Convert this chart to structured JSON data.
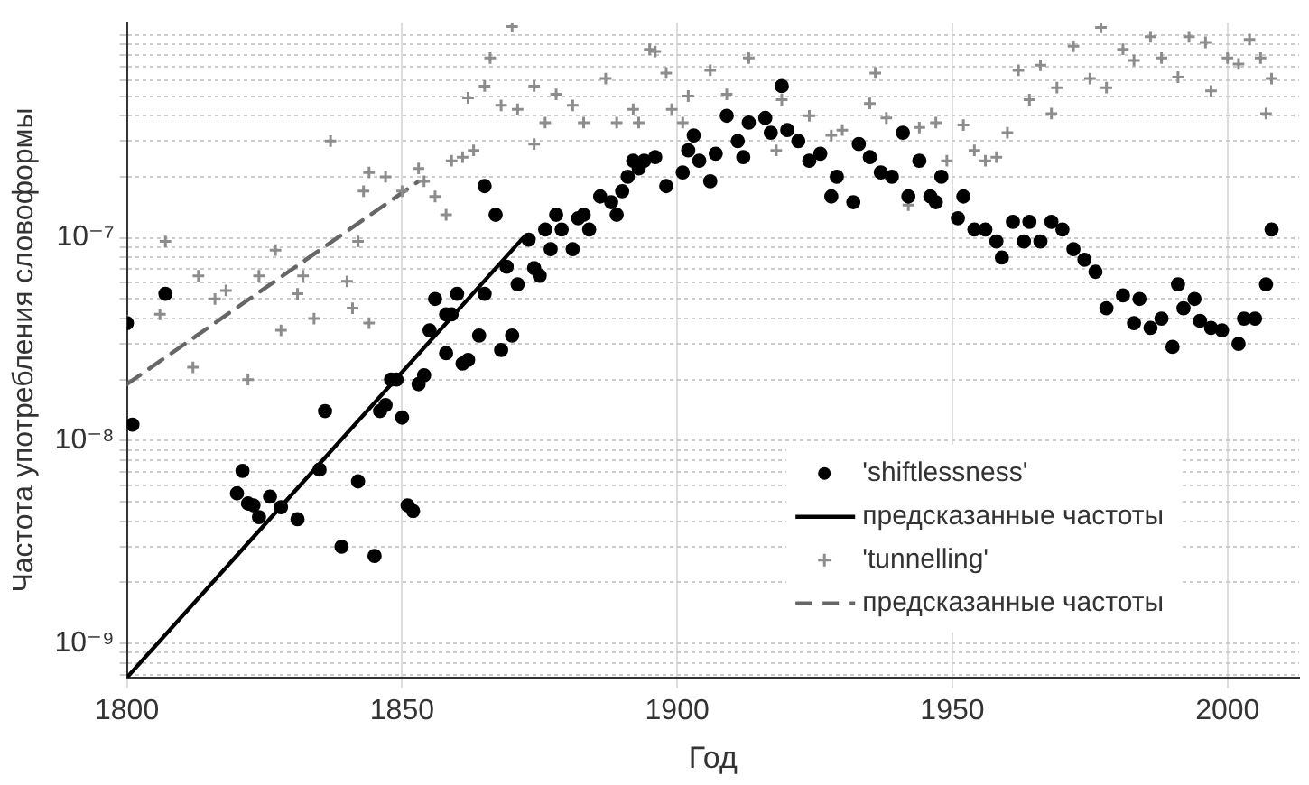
{
  "chart_data": {
    "type": "scatter",
    "xlabel": "Год",
    "ylabel": "Частота употребления словоформы",
    "log": "y",
    "grid": true,
    "legend": "bottom right",
    "xlim": [
      1800,
      2013
    ],
    "xticks": [
      1800,
      1850,
      1900,
      1950,
      2000
    ],
    "ylim": [
      6.8e-10,
      1.15e-06
    ],
    "yticks": [
      {
        "value": 7e-10,
        "label": null
      },
      {
        "value": 8e-10,
        "label": null
      },
      {
        "value": 9e-10,
        "label": null
      },
      {
        "value": 1e-09,
        "label": "10⁻⁹"
      },
      {
        "value": 2e-09,
        "label": null
      },
      {
        "value": 3e-09,
        "label": null
      },
      {
        "value": 4e-09,
        "label": null
      },
      {
        "value": 5e-09,
        "label": null
      },
      {
        "value": 6e-09,
        "label": null
      },
      {
        "value": 7e-09,
        "label": null
      },
      {
        "value": 8e-09,
        "label": null
      },
      {
        "value": 9e-09,
        "label": null
      },
      {
        "value": 1e-08,
        "label": "10⁻⁸"
      },
      {
        "value": 2e-08,
        "label": null
      },
      {
        "value": 3e-08,
        "label": null
      },
      {
        "value": 4e-08,
        "label": null
      },
      {
        "value": 5e-08,
        "label": null
      },
      {
        "value": 6e-08,
        "label": null
      },
      {
        "value": 7e-08,
        "label": null
      },
      {
        "value": 8e-08,
        "label": null
      },
      {
        "value": 9e-08,
        "label": null
      },
      {
        "value": 1e-07,
        "label": "10⁻⁷"
      },
      {
        "value": 2e-07,
        "label": null
      },
      {
        "value": 3e-07,
        "label": null
      },
      {
        "value": 4e-07,
        "label": null
      },
      {
        "value": 5e-07,
        "label": null
      },
      {
        "value": 6e-07,
        "label": null
      },
      {
        "value": 7e-07,
        "label": null
      },
      {
        "value": 8e-07,
        "label": null
      },
      {
        "value": 9e-07,
        "label": null
      },
      {
        "value": 1e-06,
        "label": null
      }
    ],
    "series": [
      {
        "name": "'shiftlessness'",
        "marker": "circle",
        "color": "#000000",
        "x": [
          1800,
          1801,
          1807,
          1820,
          1821,
          1822,
          1823,
          1824,
          1826,
          1828,
          1831,
          1835,
          1836,
          1839,
          1842,
          1845,
          1846,
          1847,
          1848,
          1849,
          1850,
          1851,
          1852,
          1853,
          1854,
          1855,
          1856,
          1858,
          1858,
          1859,
          1860,
          1861,
          1862,
          1864,
          1865,
          1865,
          1867,
          1868,
          1869,
          1870,
          1871,
          1873,
          1874,
          1875,
          1876,
          1877,
          1878,
          1879,
          1881,
          1882,
          1883,
          1884,
          1886,
          1888,
          1889,
          1890,
          1891,
          1892,
          1893,
          1894,
          1896,
          1898,
          1901,
          1902,
          1903,
          1904,
          1906,
          1907,
          1909,
          1911,
          1912,
          1913,
          1916,
          1917,
          1919,
          1920,
          1922,
          1924,
          1926,
          1928,
          1929,
          1932,
          1933,
          1935,
          1937,
          1939,
          1941,
          1942,
          1944,
          1946,
          1947,
          1948,
          1951,
          1952,
          1954,
          1956,
          1958,
          1959,
          1961,
          1963,
          1964,
          1966,
          1968,
          1970,
          1972,
          1974,
          1976,
          1978,
          1981,
          1983,
          1984,
          1986,
          1988,
          1990,
          1991,
          1992,
          1994,
          1995,
          1997,
          1999,
          2002,
          2003,
          2005,
          2007,
          2008
        ],
        "values": [
          3.8e-08,
          1.2e-08,
          5.3e-08,
          5.5e-09,
          7.1e-09,
          4.9e-09,
          4.8e-09,
          4.2e-09,
          5.3e-09,
          4.7e-09,
          4.1e-09,
          7.2e-09,
          1.4e-08,
          3e-09,
          6.3e-09,
          2.7e-09,
          1.4e-08,
          1.5e-08,
          2e-08,
          2e-08,
          1.3e-08,
          4.8e-09,
          4.5e-09,
          1.9e-08,
          2.1e-08,
          3.5e-08,
          5e-08,
          4.2e-08,
          2.7e-08,
          4.2e-08,
          5.3e-08,
          2.4e-08,
          2.5e-08,
          3.3e-08,
          5.3e-08,
          1.8e-07,
          1.3e-07,
          2.8e-08,
          7.2e-08,
          3.3e-08,
          5.9e-08,
          9.8e-08,
          7.1e-08,
          6.5e-08,
          1.1e-07,
          8.8e-08,
          1.3e-07,
          1.1e-07,
          8.8e-08,
          1.25e-07,
          1.3e-07,
          1.1e-07,
          1.6e-07,
          1.5e-07,
          1.3e-07,
          1.7e-07,
          2e-07,
          2.4e-07,
          2.2e-07,
          2.4e-07,
          2.5e-07,
          1.8e-07,
          2.1e-07,
          2.7e-07,
          3.2e-07,
          2.4e-07,
          1.9e-07,
          2.6e-07,
          4e-07,
          3e-07,
          2.5e-07,
          3.7e-07,
          3.9e-07,
          3.3e-07,
          5.6e-07,
          3.4e-07,
          3e-07,
          2.4e-07,
          2.6e-07,
          1.6e-07,
          2e-07,
          1.5e-07,
          2.9e-07,
          2.5e-07,
          2.1e-07,
          2e-07,
          3.3e-07,
          1.6e-07,
          2.4e-07,
          1.6e-07,
          1.5e-07,
          2e-07,
          1.25e-07,
          1.6e-07,
          1.1e-07,
          1.1e-07,
          9.6e-08,
          8e-08,
          1.2e-07,
          9.6e-08,
          1.2e-07,
          9.6e-08,
          1.2e-07,
          1.1e-07,
          8.8e-08,
          7.8e-08,
          6.8e-08,
          4.5e-08,
          5.2e-08,
          3.8e-08,
          5e-08,
          3.6e-08,
          4e-08,
          2.9e-08,
          5.9e-08,
          4.5e-08,
          5e-08,
          3.9e-08,
          3.6e-08,
          3.5e-08,
          3e-08,
          4e-08,
          4e-08,
          5.9e-08,
          1.1e-07
        ]
      },
      {
        "name": "предсказанные частоты",
        "type": "line",
        "marker": "none",
        "line_style": "solid",
        "color": "#000000",
        "x": [
          1800,
          1872
        ],
        "values": [
          6.8e-10,
          1e-07
        ]
      },
      {
        "name": "'tunnelling'",
        "marker": "cross",
        "color": "#8c8c8c",
        "x": [
          1800,
          1806,
          1807,
          1812,
          1813,
          1816,
          1818,
          1822,
          1824,
          1827,
          1828,
          1831,
          1832,
          1834,
          1837,
          1840,
          1841,
          1842,
          1843,
          1844,
          1844,
          1847,
          1850,
          1853,
          1854,
          1856,
          1858,
          1859,
          1861,
          1862,
          1863,
          1865,
          1866,
          1868,
          1870,
          1871,
          1874,
          1874,
          1876,
          1878,
          1881,
          1883,
          1887,
          1889,
          1892,
          1893,
          1895,
          1896,
          1898,
          1899,
          1901,
          1902,
          1906,
          1909,
          1913,
          1918,
          1919,
          1924,
          1928,
          1930,
          1935,
          1936,
          1938,
          1942,
          1944,
          1947,
          1949,
          1952,
          1954,
          1956,
          1958,
          1960,
          1962,
          1964,
          1966,
          1968,
          1969,
          1972,
          1975,
          1977,
          1978,
          1981,
          1983,
          1986,
          1988,
          1991,
          1993,
          1996,
          1997,
          2000,
          2002,
          2004,
          2006,
          2007,
          2008
        ],
        "values": [
          3.9e-08,
          4.2e-08,
          9.6e-08,
          2.3e-08,
          6.5e-08,
          5e-08,
          5.5e-08,
          2e-08,
          6.5e-08,
          8.7e-08,
          3.5e-08,
          5.3e-08,
          6.5e-08,
          4e-08,
          3e-07,
          6.1e-08,
          4.5e-08,
          9.6e-08,
          1.7e-07,
          3.8e-08,
          2.1e-07,
          2e-07,
          1.7e-07,
          2.2e-07,
          1.9e-07,
          1.6e-07,
          1.3e-07,
          2.4e-07,
          2.5e-07,
          4.9e-07,
          2.7e-07,
          5.6e-07,
          7.7e-07,
          4.5e-07,
          1.1e-06,
          4.3e-07,
          5.6e-07,
          2.9e-07,
          3.7e-07,
          5.1e-07,
          4.5e-07,
          3.7e-07,
          6.1e-07,
          3.7e-07,
          4.3e-07,
          3.7e-07,
          8.5e-07,
          8.3e-07,
          6.5e-07,
          4.3e-07,
          3.7e-07,
          5e-07,
          6.7e-07,
          5.1e-07,
          7.7e-07,
          2.7e-07,
          4.8e-07,
          4e-07,
          3.2e-07,
          3.4e-07,
          4.6e-07,
          6.5e-07,
          3.9e-07,
          1.45e-07,
          3.5e-07,
          3.7e-07,
          2.4e-07,
          3.6e-07,
          2.7e-07,
          2.4e-07,
          2.5e-07,
          3.3e-07,
          6.7e-07,
          4.8e-07,
          7.1e-07,
          4.1e-07,
          5.5e-07,
          8.8e-07,
          6.1e-07,
          1.09e-06,
          5.5e-07,
          8.5e-07,
          7.5e-07,
          9.8e-07,
          7.7e-07,
          6.2e-07,
          9.8e-07,
          9.2e-07,
          5.3e-07,
          7.7e-07,
          7.2e-07,
          9.5e-07,
          7.7e-07,
          4.1e-07,
          6.1e-07
        ]
      },
      {
        "name": "предсказанные частоты",
        "type": "line",
        "marker": "none",
        "line_style": "dashed",
        "color": "#666666",
        "x": [
          1800,
          1853
        ],
        "values": [
          1.9e-08,
          1.9e-07
        ]
      }
    ]
  }
}
